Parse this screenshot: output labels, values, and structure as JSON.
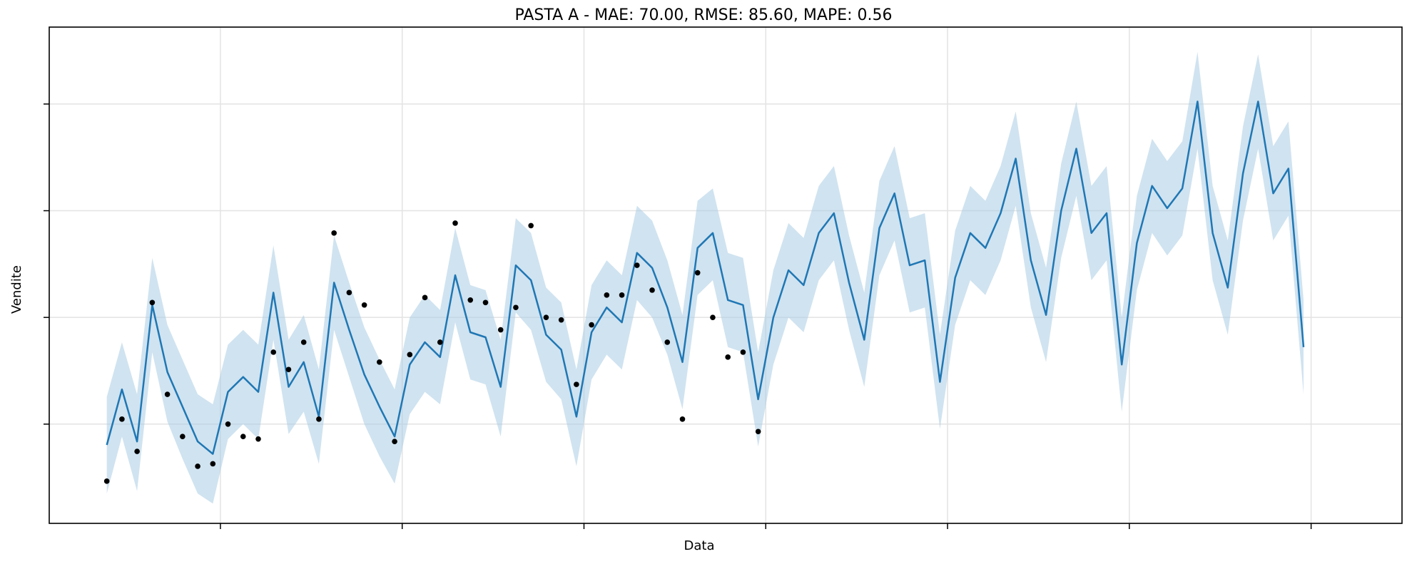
{
  "chart_data": {
    "type": "line",
    "title": "PASTA A  - MAE: 70.00, RMSE: 85.60, MAPE: 0.56",
    "xlabel": "Data",
    "ylabel": "Vendite",
    "xlim": [
      -3.8,
      85.5
    ],
    "ylim": [
      0,
      100
    ],
    "x_ticks": [
      7.5,
      19.5,
      31.5,
      43.5,
      55.5,
      67.5,
      79.5
    ],
    "y_ticks": [
      20,
      41.5,
      63,
      84.5
    ],
    "grid": true,
    "legend": "none",
    "colors": {
      "forecast": "#1f77b4",
      "interval": "#a9cce3",
      "actual": "#000000"
    },
    "series": [
      {
        "kind": "forecast",
        "x": [
          0,
          1,
          2,
          3,
          4,
          5,
          6,
          7,
          8,
          9,
          10,
          11,
          12,
          13,
          14,
          15,
          16,
          17,
          18,
          19,
          20,
          21,
          22,
          23,
          24,
          25,
          26,
          27,
          28,
          29,
          30,
          31,
          32,
          33,
          34,
          35,
          36,
          37,
          38,
          39,
          40,
          41,
          42,
          43,
          44,
          45,
          46,
          47,
          48,
          49,
          50,
          51,
          52,
          53,
          54,
          55,
          56,
          57,
          58,
          59,
          60,
          61,
          62,
          63,
          64,
          65,
          66,
          67,
          68,
          69,
          70,
          71,
          72,
          73,
          74,
          75,
          76,
          77,
          78,
          79
        ],
        "y": [
          15.8,
          27.0,
          16.5,
          44.0,
          30.5,
          23.5,
          16.5,
          14.0,
          26.5,
          29.5,
          26.5,
          46.5,
          27.5,
          32.5,
          21.5,
          48.5,
          39.0,
          30.0,
          23.5,
          17.5,
          32.0,
          36.5,
          33.5,
          50.0,
          38.5,
          37.5,
          27.5,
          52.0,
          49.0,
          38.0,
          35.0,
          21.5,
          38.5,
          43.5,
          40.5,
          54.5,
          51.5,
          43.5,
          32.5,
          55.5,
          58.5,
          45.0,
          44.0,
          25.0,
          41.5,
          51.0,
          48.0,
          58.5,
          62.5,
          48.5,
          37.0,
          59.5,
          66.5,
          52.0,
          53.0,
          28.5,
          49.5,
          58.5,
          55.5,
          62.5,
          73.5,
          53.0,
          42.0,
          63.0,
          75.5,
          58.5,
          62.5,
          32.0,
          56.5,
          68.0,
          63.5,
          67.5,
          85.0,
          58.5,
          47.5,
          70.5,
          85.0,
          66.5,
          71.5,
          35.5
        ]
      },
      {
        "kind": "interval",
        "lower": [
          6.0,
          17.5,
          6.5,
          34.5,
          20.5,
          13.0,
          6.0,
          4.0,
          17.0,
          20.0,
          17.0,
          37.0,
          18.0,
          22.5,
          12.0,
          39.0,
          29.5,
          20.0,
          13.5,
          8.0,
          22.0,
          26.5,
          24.0,
          40.5,
          29.0,
          28.0,
          17.5,
          42.5,
          39.0,
          28.5,
          25.0,
          11.5,
          29.0,
          34.0,
          31.0,
          45.0,
          41.5,
          34.0,
          23.0,
          46.0,
          49.0,
          35.5,
          34.5,
          15.5,
          32.0,
          41.5,
          38.5,
          49.0,
          53.0,
          39.0,
          27.5,
          50.0,
          57.0,
          42.5,
          43.5,
          19.0,
          40.0,
          49.0,
          46.0,
          53.0,
          64.0,
          43.5,
          32.5,
          53.5,
          66.0,
          49.0,
          53.0,
          22.5,
          47.0,
          58.5,
          54.0,
          58.0,
          75.5,
          49.0,
          38.0,
          61.0,
          75.5,
          57.0,
          62.0,
          26.0
        ],
        "upper": [
          25.5,
          36.5,
          26.0,
          53.5,
          40.0,
          33.0,
          26.0,
          24.0,
          36.0,
          39.0,
          36.0,
          56.0,
          37.0,
          42.0,
          31.0,
          58.0,
          48.5,
          39.5,
          33.0,
          27.0,
          41.5,
          46.0,
          43.0,
          59.5,
          48.0,
          47.0,
          37.0,
          61.5,
          58.5,
          47.5,
          44.5,
          31.0,
          48.0,
          53.0,
          50.0,
          64.0,
          61.0,
          53.0,
          42.0,
          65.0,
          67.5,
          54.5,
          53.5,
          34.5,
          51.0,
          60.5,
          57.5,
          68.0,
          72.0,
          58.0,
          46.5,
          69.0,
          76.0,
          61.5,
          62.5,
          38.0,
          59.0,
          68.0,
          65.0,
          72.0,
          83.0,
          62.5,
          51.5,
          72.5,
          85.0,
          68.0,
          72.0,
          41.5,
          66.0,
          77.5,
          73.0,
          77.0,
          95.0,
          68.0,
          57.0,
          80.0,
          94.5,
          76.0,
          81.0,
          45.0
        ]
      },
      {
        "kind": "actual",
        "x": [
          0,
          1,
          2,
          3,
          4,
          5,
          6,
          7,
          8,
          9,
          10,
          11,
          12,
          13,
          14,
          15,
          16,
          17,
          18,
          19,
          20,
          21,
          22,
          23,
          24,
          25,
          26,
          27,
          28,
          29,
          30,
          31,
          32,
          33,
          34,
          35,
          36,
          37,
          38,
          39,
          40,
          41,
          42,
          43
        ],
        "y": [
          8.5,
          21.0,
          14.5,
          44.5,
          26.0,
          17.5,
          11.5,
          12.0,
          20.0,
          17.5,
          17.0,
          34.5,
          31.0,
          36.5,
          21.0,
          58.5,
          46.5,
          44.0,
          32.5,
          16.5,
          34.0,
          45.5,
          36.5,
          60.5,
          45.0,
          44.5,
          39.0,
          43.5,
          60.0,
          41.5,
          41.0,
          28.0,
          40.0,
          46.0,
          46.0,
          52.0,
          47.0,
          36.5,
          21.0,
          50.5,
          41.5,
          33.5,
          34.5,
          18.5
        ]
      }
    ]
  }
}
